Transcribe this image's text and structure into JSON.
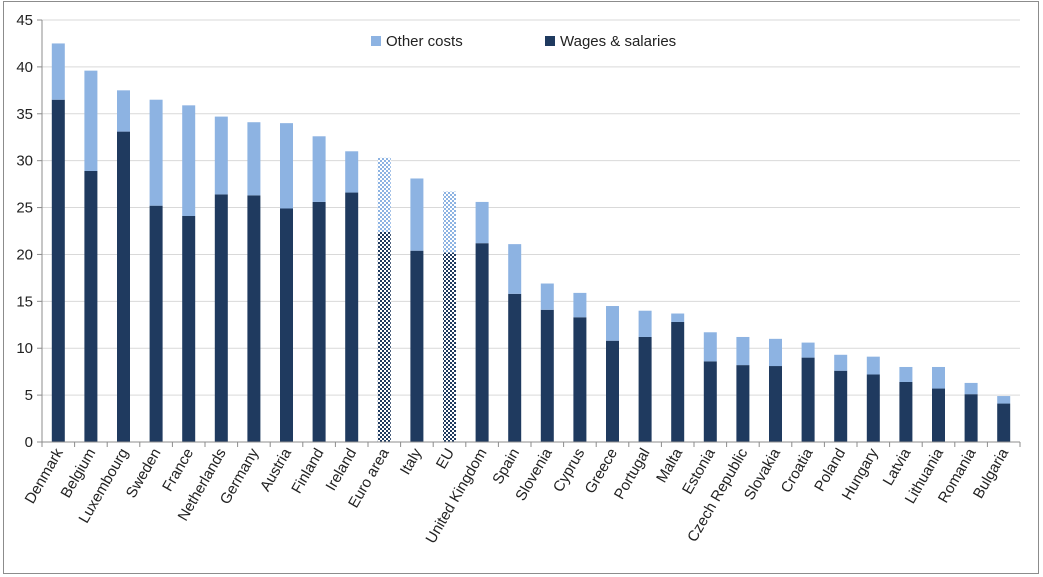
{
  "chart_data": {
    "type": "bar",
    "stacked": true,
    "title": "",
    "xlabel": "",
    "ylabel": "",
    "ylim": [
      0,
      45
    ],
    "yticks": [
      0,
      5,
      10,
      15,
      20,
      25,
      30,
      35,
      40,
      45
    ],
    "grid": true,
    "legend_position": "top",
    "categories": [
      "Denmark",
      "Belgium",
      "Luxembourg",
      "Sweden",
      "France",
      "Netherlands",
      "Germany",
      "Austria",
      "Finland",
      "Ireland",
      "Euro area",
      "Italy",
      "EU",
      "United Kingdom",
      "Spain",
      "Slovenia",
      "Cyprus",
      "Greece",
      "Portugal",
      "Malta",
      "Estonia",
      "Czech Republic",
      "Slovakia",
      "Croatia",
      "Poland",
      "Hungary",
      "Latvia",
      "Lithuania",
      "Romania",
      "Bulgaria"
    ],
    "highlighted_categories": [
      "Euro area",
      "EU"
    ],
    "series": [
      {
        "name": "Wages & salaries",
        "color": "#1f3a5f",
        "values": [
          36.5,
          28.9,
          33.1,
          25.2,
          24.1,
          26.4,
          26.3,
          24.9,
          25.6,
          26.6,
          22.4,
          20.4,
          20.2,
          21.2,
          15.8,
          14.1,
          13.3,
          10.8,
          11.2,
          12.8,
          8.6,
          8.2,
          8.1,
          9.0,
          7.6,
          7.2,
          6.4,
          5.7,
          5.1,
          4.1
        ]
      },
      {
        "name": "Other costs",
        "color": "#8db3e2",
        "values": [
          6.0,
          10.7,
          4.4,
          11.3,
          11.8,
          8.3,
          7.8,
          9.1,
          7.0,
          4.4,
          7.9,
          7.7,
          6.5,
          4.4,
          5.3,
          2.8,
          2.6,
          3.7,
          2.8,
          0.9,
          3.1,
          3.0,
          2.9,
          1.6,
          1.7,
          1.9,
          1.6,
          2.3,
          1.2,
          0.8
        ]
      }
    ],
    "legend": [
      {
        "label": "Other costs",
        "series": "Other costs"
      },
      {
        "label": "Wages & salaries",
        "series": "Wages & salaries"
      }
    ]
  }
}
